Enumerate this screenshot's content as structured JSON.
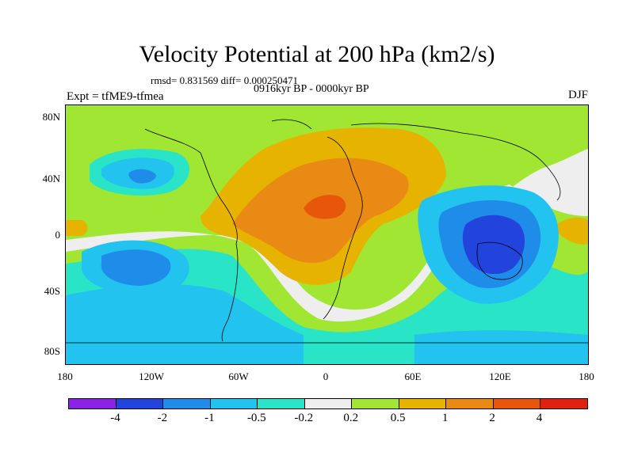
{
  "figure": {
    "title": "Velocity Potential at 200 hPa (km2/s)",
    "stats": "rmsd= 0.831569 diff= 0.000250471",
    "period": "0916kyr BP - 0000kyr BP",
    "experiment": "Expt = tfME9-tfmea",
    "season": "DJF"
  },
  "axes": {
    "y_ticks": [
      "80N",
      "40N",
      "0",
      "40S",
      "80S"
    ],
    "x_ticks": [
      "180",
      "120W",
      "60W",
      "0",
      "60E",
      "120E",
      "180"
    ]
  },
  "colorbar": {
    "levels": [
      "-4",
      "-2",
      "-1",
      "-0.5",
      "-0.2",
      "0.2",
      "0.5",
      "1",
      "2",
      "4"
    ],
    "colors": [
      "#8b22e6",
      "#2244dd",
      "#1e8ce8",
      "#22c3ee",
      "#2ae4c8",
      "#eeeeee",
      "#a0e632",
      "#e6b400",
      "#e88a14",
      "#e8560a",
      "#e02010"
    ]
  },
  "chart_data": {
    "type": "heatmap",
    "title": "Velocity Potential at 200 hPa (km2/s)",
    "x_range": [
      "180",
      "180"
    ],
    "y_range": [
      "80S",
      "80N"
    ],
    "contour_levels": [
      -4,
      -2,
      -1,
      -0.5,
      -0.2,
      0.2,
      0.5,
      1,
      2,
      4
    ]
  }
}
